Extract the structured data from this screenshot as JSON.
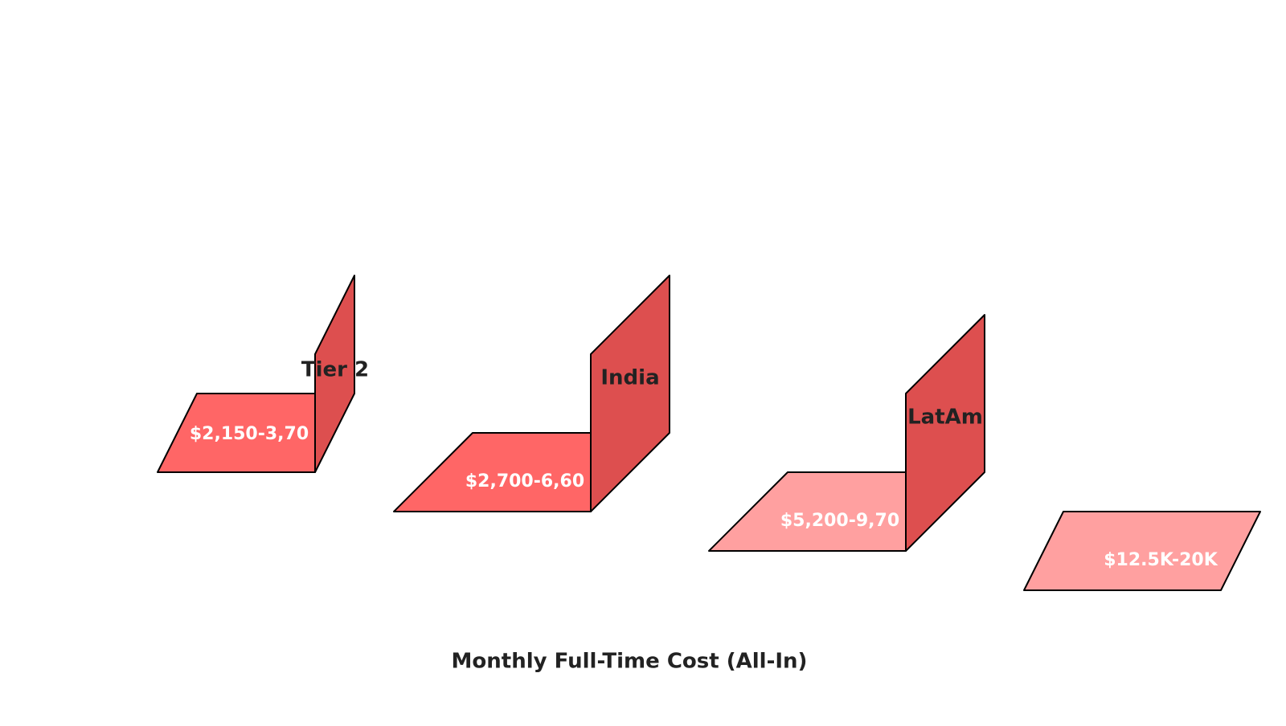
{
  "title": "Monthly Full-Time Cost (All-In)",
  "items": [
    {
      "label": "Tier 2",
      "value_label": "$2,150-3,70"
    },
    {
      "label": "India",
      "value_label": "$2,700-6,60"
    },
    {
      "label": "LatAm",
      "value_label": "$5,200-9,70"
    },
    {
      "value_label": "$12.5K-20K"
    }
  ]
}
